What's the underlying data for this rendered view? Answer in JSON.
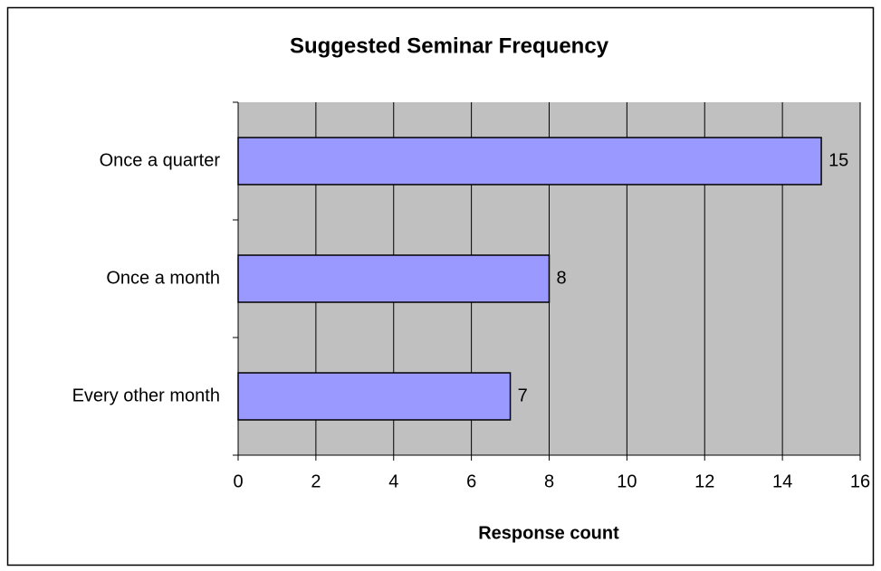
{
  "chart_data": {
    "type": "bar",
    "orientation": "horizontal",
    "title": "Suggested Seminar Frequency",
    "x_label": "Response count",
    "categories": [
      "Once a quarter",
      "Once a month",
      "Every other month"
    ],
    "values": [
      15,
      8,
      7
    ],
    "color": "#9999ff",
    "plot_background": "#c0c0c0",
    "xlim": [
      0,
      16
    ],
    "xticks": [
      0,
      2,
      4,
      6,
      8,
      10,
      12,
      14,
      16
    ],
    "grid": true
  }
}
